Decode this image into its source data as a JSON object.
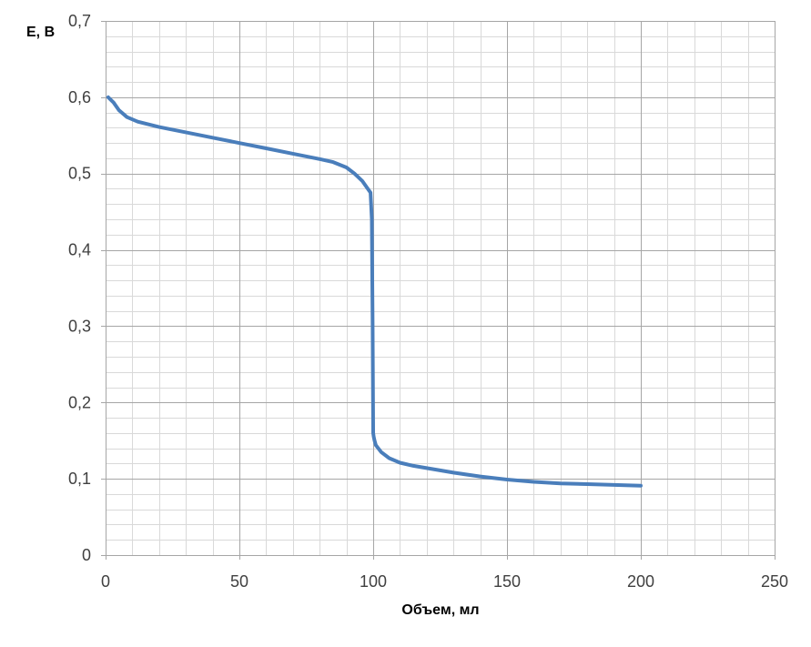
{
  "chart_data": {
    "type": "line",
    "xlabel": "Объем, мл",
    "ylabel": "E, В",
    "xlim": [
      0,
      250
    ],
    "ylim": [
      0,
      0.7
    ],
    "x_major_ticks": [
      0,
      50,
      100,
      150,
      200,
      250
    ],
    "x_minor_step": 10,
    "y_major_ticks": [
      0,
      0.1,
      0.2,
      0.3,
      0.4,
      0.5,
      0.6,
      0.7
    ],
    "y_minor_step": 0.02,
    "x_tick_labels": [
      "0",
      "50",
      "100",
      "150",
      "200",
      "250"
    ],
    "y_tick_labels": [
      "0",
      "0,1",
      "0,2",
      "0,3",
      "0,4",
      "0,5",
      "0,6",
      "0,7"
    ],
    "grid": true,
    "colors": {
      "line": "#4a7ebb",
      "major_grid": "#a6a6a6",
      "minor_grid": "#d9d9d9",
      "axis": "#a6a6a6"
    },
    "series": [
      {
        "x": [
          1,
          3,
          5,
          8,
          12,
          20,
          30,
          40,
          50,
          60,
          70,
          80,
          85,
          90,
          93,
          96,
          98,
          99,
          99.5,
          99.8,
          100,
          100.2,
          100.5,
          101,
          103,
          106,
          110,
          115,
          120,
          130,
          140,
          150,
          160,
          170,
          180,
          190,
          200
        ],
        "y": [
          0.6,
          0.593,
          0.583,
          0.574,
          0.568,
          0.561,
          0.554,
          0.547,
          0.54,
          0.533,
          0.526,
          0.519,
          0.515,
          0.508,
          0.5,
          0.49,
          0.48,
          0.475,
          0.44,
          0.3,
          0.16,
          0.155,
          0.15,
          0.144,
          0.135,
          0.127,
          0.121,
          0.117,
          0.114,
          0.108,
          0.103,
          0.099,
          0.096,
          0.094,
          0.093,
          0.092,
          0.091
        ]
      }
    ]
  }
}
